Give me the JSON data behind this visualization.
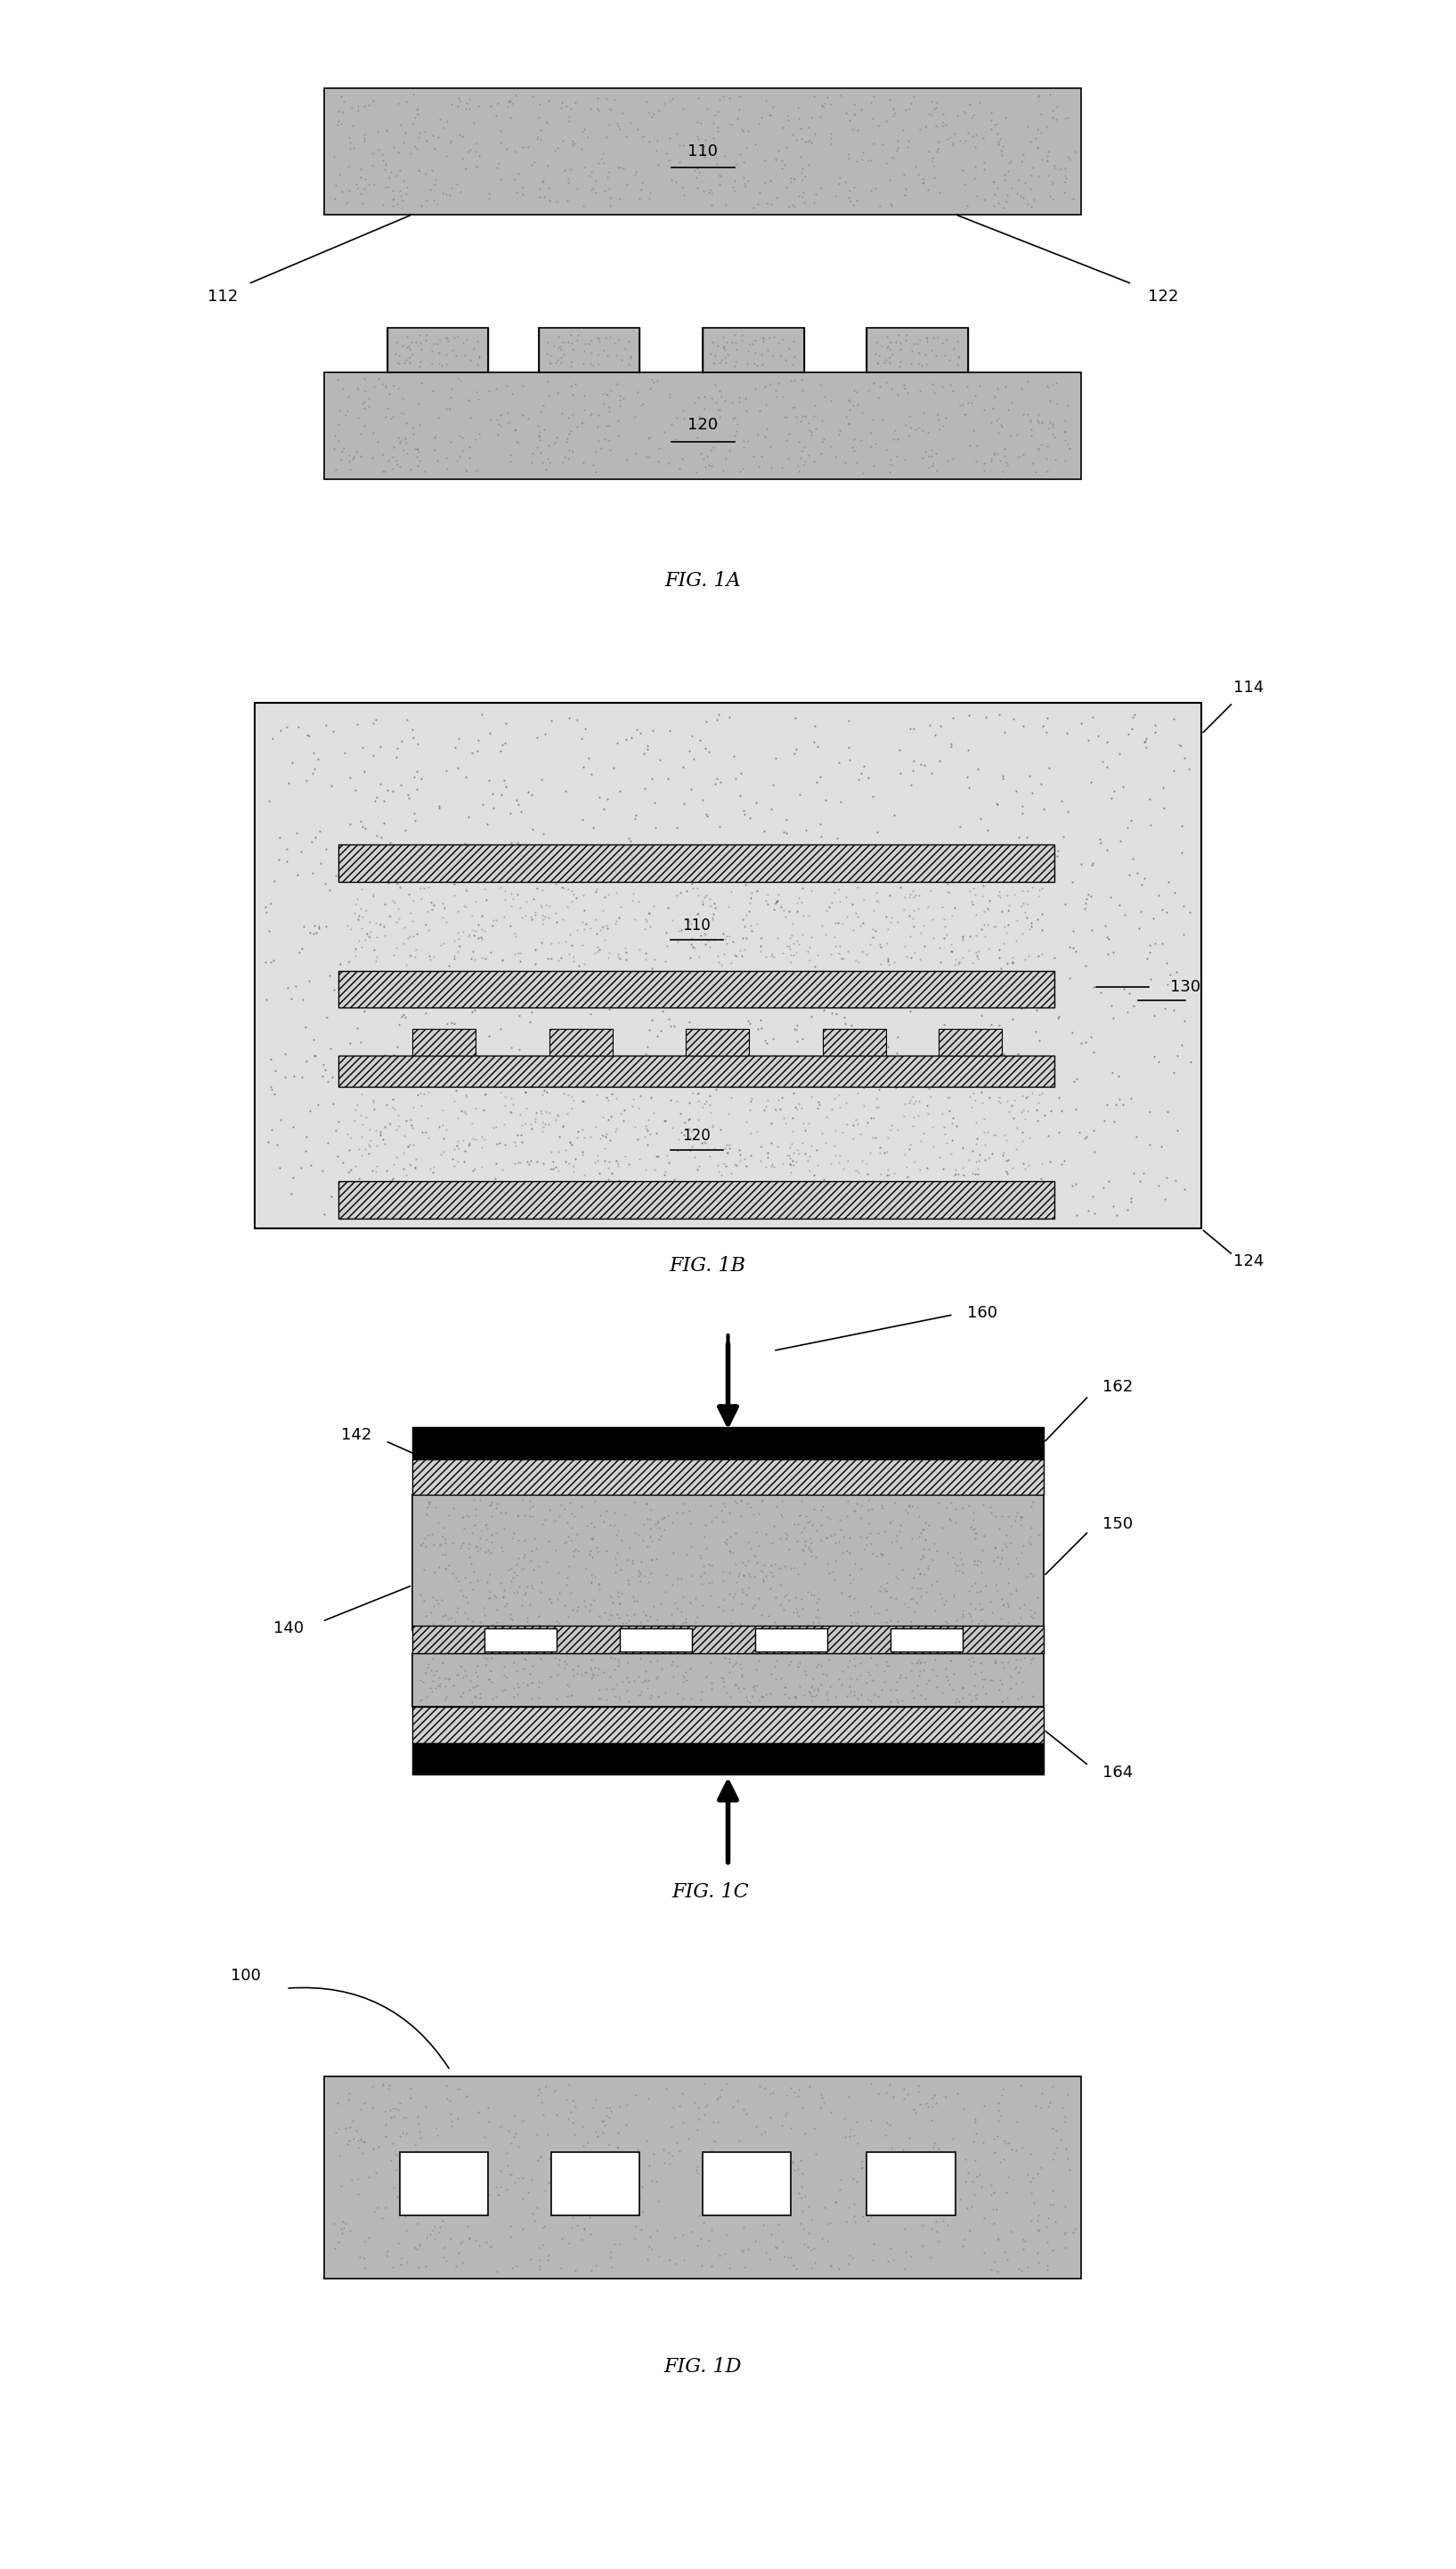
{
  "fig_labels": [
    "FIG. 1A",
    "FIG. 1B",
    "FIG. 1C",
    "FIG. 1D"
  ],
  "bg_color": "#ffffff",
  "part_color_light": "#c8c8c8",
  "part_color_dark": "#a0a0a0",
  "hatch_color": "#000000",
  "dot_color": "#888888",
  "black": "#000000",
  "label_110": "110",
  "label_120": "120",
  "label_112": "112",
  "label_122": "122",
  "label_114": "114",
  "label_124": "124",
  "label_130": "130",
  "label_140": "140",
  "label_142": "142",
  "label_150": "150",
  "label_160": "160",
  "label_162": "162",
  "label_164": "164",
  "label_100": "100"
}
